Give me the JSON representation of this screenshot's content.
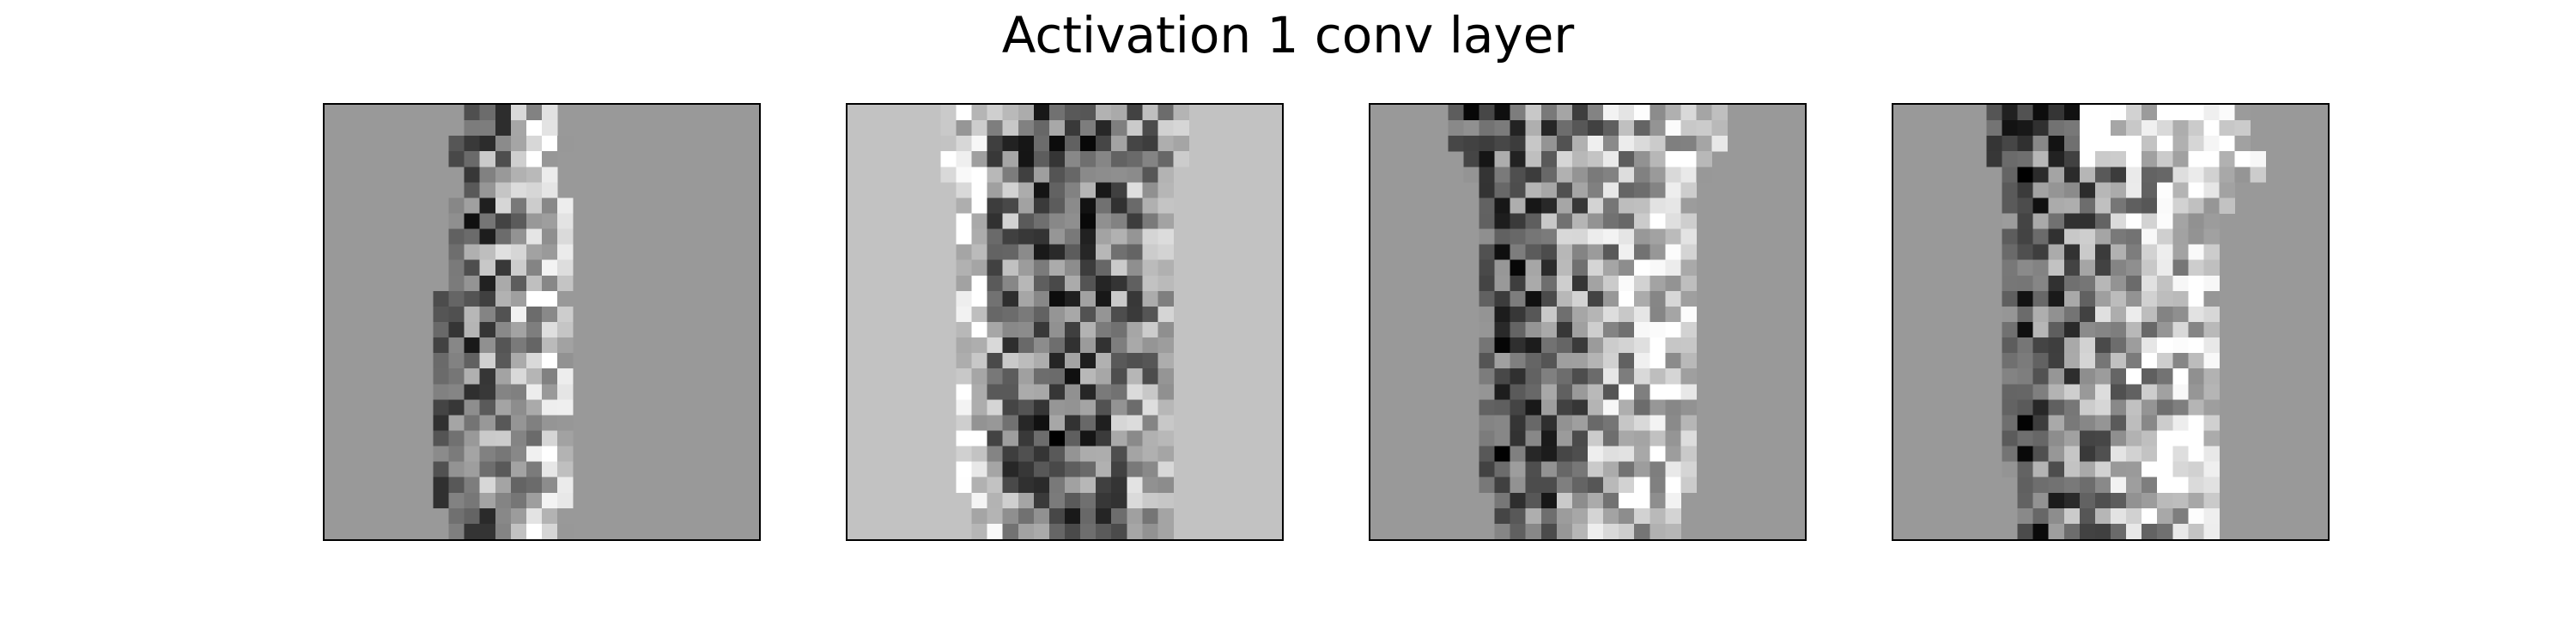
{
  "figure": {
    "title": "Activation 1 conv layer"
  },
  "chart_data": [
    {
      "type": "heatmap",
      "colormap": "gray",
      "background_level": 0.6,
      "columns": 28,
      "rows": 28,
      "note_columns": "each row lists [start_col, end_col] of the garment region; outside is background",
      "garment_extent": [
        [
          9,
          14
        ],
        [
          9,
          14
        ],
        [
          8,
          15
        ],
        [
          8,
          14
        ],
        [
          9,
          14
        ],
        [
          9,
          14
        ],
        [
          8,
          15
        ],
        [
          8,
          15
        ],
        [
          8,
          15
        ],
        [
          8,
          15
        ],
        [
          8,
          15
        ],
        [
          8,
          15
        ],
        [
          7,
          15
        ],
        [
          7,
          15
        ],
        [
          7,
          15
        ],
        [
          7,
          15
        ],
        [
          7,
          15
        ],
        [
          7,
          15
        ],
        [
          7,
          15
        ],
        [
          7,
          15
        ],
        [
          7,
          15
        ],
        [
          7,
          15
        ],
        [
          7,
          15
        ],
        [
          7,
          15
        ],
        [
          7,
          15
        ],
        [
          7,
          15
        ],
        [
          8,
          15
        ],
        [
          8,
          15
        ]
      ],
      "dark_edge": "left",
      "bright_edge": "right"
    },
    {
      "type": "heatmap",
      "colormap": "gray",
      "background_level": 0.76,
      "columns": 28,
      "rows": 28,
      "garment_extent": [
        [
          6,
          21
        ],
        [
          6,
          21
        ],
        [
          6,
          21
        ],
        [
          6,
          21
        ],
        [
          6,
          20
        ],
        [
          7,
          20
        ],
        [
          7,
          20
        ],
        [
          7,
          20
        ],
        [
          7,
          20
        ],
        [
          7,
          20
        ],
        [
          7,
          20
        ],
        [
          7,
          20
        ],
        [
          7,
          20
        ],
        [
          7,
          20
        ],
        [
          7,
          20
        ],
        [
          7,
          20
        ],
        [
          7,
          20
        ],
        [
          7,
          20
        ],
        [
          7,
          20
        ],
        [
          7,
          20
        ],
        [
          7,
          20
        ],
        [
          7,
          20
        ],
        [
          7,
          20
        ],
        [
          7,
          20
        ],
        [
          7,
          20
        ],
        [
          8,
          20
        ],
        [
          8,
          20
        ],
        [
          8,
          20
        ]
      ],
      "dark_edge": "center",
      "bright_edge": "left"
    },
    {
      "type": "heatmap",
      "colormap": "gray",
      "background_level": 0.6,
      "columns": 28,
      "rows": 28,
      "garment_extent": [
        [
          5,
          22
        ],
        [
          5,
          22
        ],
        [
          5,
          22
        ],
        [
          6,
          21
        ],
        [
          6,
          21
        ],
        [
          7,
          20
        ],
        [
          7,
          20
        ],
        [
          7,
          20
        ],
        [
          7,
          20
        ],
        [
          7,
          20
        ],
        [
          7,
          20
        ],
        [
          7,
          20
        ],
        [
          7,
          20
        ],
        [
          7,
          20
        ],
        [
          7,
          20
        ],
        [
          7,
          20
        ],
        [
          7,
          20
        ],
        [
          7,
          20
        ],
        [
          7,
          20
        ],
        [
          7,
          20
        ],
        [
          7,
          20
        ],
        [
          7,
          20
        ],
        [
          7,
          20
        ],
        [
          7,
          20
        ],
        [
          7,
          20
        ],
        [
          8,
          19
        ],
        [
          8,
          19
        ],
        [
          8,
          19
        ]
      ],
      "dark_edge": "left",
      "bright_edge": "right"
    },
    {
      "type": "heatmap",
      "colormap": "gray",
      "background_level": 0.6,
      "columns": 28,
      "rows": 28,
      "garment_extent": [
        [
          6,
          22
        ],
        [
          6,
          22
        ],
        [
          6,
          22
        ],
        [
          6,
          23
        ],
        [
          7,
          23
        ],
        [
          7,
          21
        ],
        [
          7,
          21
        ],
        [
          7,
          20
        ],
        [
          7,
          20
        ],
        [
          7,
          20
        ],
        [
          7,
          20
        ],
        [
          7,
          20
        ],
        [
          7,
          20
        ],
        [
          7,
          20
        ],
        [
          7,
          20
        ],
        [
          7,
          20
        ],
        [
          7,
          20
        ],
        [
          7,
          20
        ],
        [
          7,
          20
        ],
        [
          7,
          20
        ],
        [
          7,
          20
        ],
        [
          7,
          20
        ],
        [
          7,
          20
        ],
        [
          7,
          20
        ],
        [
          8,
          20
        ],
        [
          8,
          20
        ],
        [
          8,
          20
        ],
        [
          8,
          20
        ]
      ],
      "dark_edge": "left-top",
      "bright_edge": "right-top"
    }
  ]
}
